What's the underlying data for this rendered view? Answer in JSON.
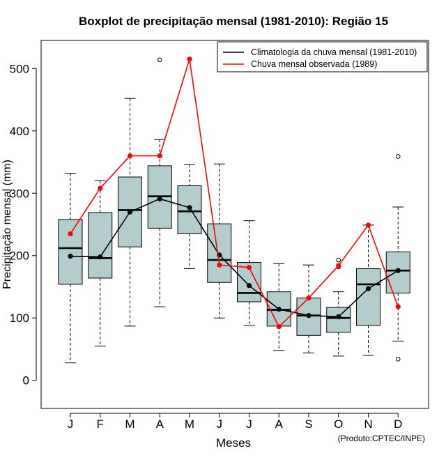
{
  "chart_data": {
    "type": "boxplot",
    "title": "Boxplot de precipitação mensal (1981-2010): Região 15",
    "xlabel": "Meses",
    "ylabel": "Precipitação mensal (mm)",
    "credit": "(Produto:CPTEC/INPE)",
    "ylim": [
      -45,
      545
    ],
    "yticks": [
      0,
      100,
      200,
      300,
      400,
      500
    ],
    "categories": [
      "J",
      "F",
      "M",
      "A",
      "M",
      "J",
      "J",
      "A",
      "S",
      "O",
      "N",
      "D"
    ],
    "boxes": [
      {
        "whisker_low": 28,
        "q1": 154,
        "median": 212,
        "q3": 258,
        "whisker_high": 332,
        "outliers": []
      },
      {
        "whisker_low": 55,
        "q1": 164,
        "median": 196,
        "q3": 269,
        "whisker_high": 320,
        "outliers": []
      },
      {
        "whisker_low": 87,
        "q1": 214,
        "median": 273,
        "q3": 326,
        "whisker_high": 452,
        "outliers": []
      },
      {
        "whisker_low": 118,
        "q1": 244,
        "median": 295,
        "q3": 344,
        "whisker_high": 386,
        "outliers": [
          514
        ]
      },
      {
        "whisker_low": 179,
        "q1": 235,
        "median": 271,
        "q3": 312,
        "whisker_high": 346,
        "outliers": []
      },
      {
        "whisker_low": 100,
        "q1": 157,
        "median": 193,
        "q3": 251,
        "whisker_high": 347,
        "outliers": []
      },
      {
        "whisker_low": 88,
        "q1": 126,
        "median": 140,
        "q3": 189,
        "whisker_high": 256,
        "outliers": []
      },
      {
        "whisker_low": 48,
        "q1": 87,
        "median": 113,
        "q3": 142,
        "whisker_high": 187,
        "outliers": []
      },
      {
        "whisker_low": 44,
        "q1": 72,
        "median": 104,
        "q3": 132,
        "whisker_high": 185,
        "outliers": []
      },
      {
        "whisker_low": 39,
        "q1": 77,
        "median": 100,
        "q3": 117,
        "whisker_high": 142,
        "outliers": [
          182,
          193
        ]
      },
      {
        "whisker_low": 40,
        "q1": 88,
        "median": 154,
        "q3": 179,
        "whisker_high": 249,
        "outliers": []
      },
      {
        "whisker_low": 63,
        "q1": 140,
        "median": 176,
        "q3": 206,
        "whisker_high": 278,
        "outliers": [
          34,
          359
        ]
      }
    ],
    "series": [
      {
        "name": "Climatologia da chuva mensal (1981-2010)",
        "color": "#000000",
        "values": [
          199,
          198,
          270,
          291,
          277,
          201,
          152,
          114,
          104,
          102,
          147,
          176
        ]
      },
      {
        "name": "Chuva mensal observada (1989)",
        "color": "#ff0000",
        "values": [
          235,
          308,
          360,
          360,
          515,
          185,
          181,
          86,
          132,
          184,
          249,
          118
        ]
      }
    ],
    "legend_position": "top-right",
    "box_fill": "#b3cccc"
  }
}
